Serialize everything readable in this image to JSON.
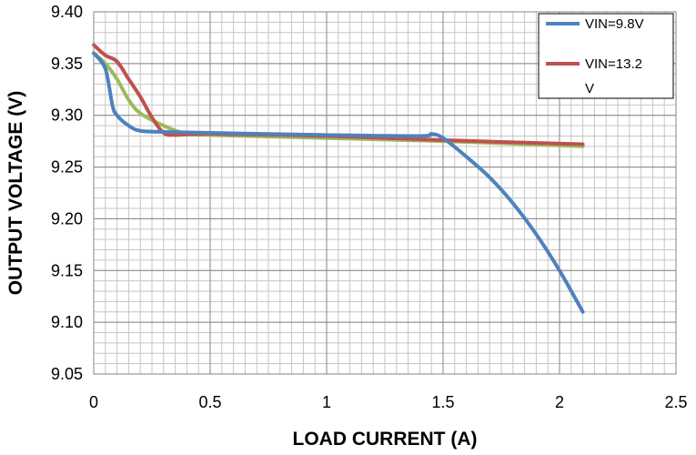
{
  "chart_data": {
    "type": "line",
    "xlabel": "LOAD CURRENT (A)",
    "ylabel": "OUTPUT VOLTAGE (V)",
    "xlim": [
      0,
      2.5
    ],
    "ylim": [
      9.05,
      9.4
    ],
    "x_ticks": [
      0,
      0.5,
      1,
      1.5,
      2,
      2.5
    ],
    "x_tick_labels": [
      "0",
      "0.5",
      "1",
      "1.5",
      "2",
      "2.5"
    ],
    "y_ticks": [
      9.05,
      9.1,
      9.15,
      9.2,
      9.25,
      9.3,
      9.35,
      9.4
    ],
    "y_tick_labels": [
      "9.05",
      "9.10",
      "9.15",
      "9.20",
      "9.25",
      "9.30",
      "9.35",
      "9.40"
    ],
    "grid": true,
    "minor_x_grid": 0.05,
    "minor_y_grid": 0.01,
    "legend_position": "top-right",
    "series": [
      {
        "name": "VIN=9.8V",
        "color": "#4F81BD",
        "points": [
          [
            0.0,
            9.36
          ],
          [
            0.05,
            9.345
          ],
          [
            0.08,
            9.31
          ],
          [
            0.1,
            9.3
          ],
          [
            0.15,
            9.29
          ],
          [
            0.2,
            9.285
          ],
          [
            0.3,
            9.284
          ],
          [
            0.5,
            9.283
          ],
          [
            1.0,
            9.281
          ],
          [
            1.4,
            9.28
          ],
          [
            1.45,
            9.282
          ],
          [
            1.5,
            9.278
          ],
          [
            1.6,
            9.26
          ],
          [
            1.7,
            9.24
          ],
          [
            1.8,
            9.215
          ],
          [
            1.9,
            9.185
          ],
          [
            2.0,
            9.15
          ],
          [
            2.1,
            9.11
          ]
        ]
      },
      {
        "name": "VIN=13.2 V",
        "legend_lines": [
          "VIN=13.2",
          "V"
        ],
        "color": "#C0504D",
        "points": [
          [
            0.0,
            9.368
          ],
          [
            0.05,
            9.358
          ],
          [
            0.1,
            9.352
          ],
          [
            0.15,
            9.335
          ],
          [
            0.2,
            9.318
          ],
          [
            0.25,
            9.298
          ],
          [
            0.3,
            9.283
          ],
          [
            0.35,
            9.281
          ],
          [
            0.5,
            9.282
          ],
          [
            1.0,
            9.28
          ],
          [
            1.5,
            9.276
          ],
          [
            2.1,
            9.272
          ]
        ]
      },
      {
        "name": "",
        "color": "#9BBB59",
        "points": [
          [
            0.0,
            9.36
          ],
          [
            0.05,
            9.35
          ],
          [
            0.1,
            9.335
          ],
          [
            0.15,
            9.315
          ],
          [
            0.2,
            9.302
          ],
          [
            0.3,
            9.29
          ],
          [
            0.4,
            9.282
          ],
          [
            0.5,
            9.281
          ],
          [
            1.0,
            9.278
          ],
          [
            1.5,
            9.275
          ],
          [
            2.1,
            9.27
          ]
        ]
      }
    ]
  }
}
